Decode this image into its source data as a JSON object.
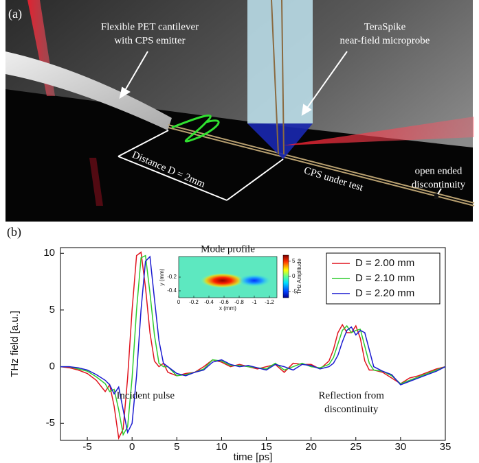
{
  "panel_a": {
    "label": "(a)",
    "cantilever_note": [
      "Flexible PET cantilever",
      "with CPS emitter"
    ],
    "probe_note": [
      "TeraSpike",
      "near-field microprobe"
    ],
    "distance_note": "Distance D = 2mm",
    "cps_note": "CPS under test",
    "discontinuity_note": [
      "open ended",
      "discontinuity"
    ]
  },
  "chart_data": {
    "type": "line",
    "panel_label": "(b)",
    "xlabel": "time [ps]",
    "ylabel": "THz field [a.u.]",
    "x": [
      -8,
      -7,
      -6,
      -5,
      -4,
      -3,
      -2.5,
      -2,
      -1.5,
      -1,
      -0.5,
      0,
      0.5,
      1,
      1.5,
      2,
      2.5,
      3,
      3.5,
      4,
      5,
      6,
      7,
      8,
      9,
      10,
      11,
      12,
      13,
      14,
      15,
      16,
      17,
      18,
      19,
      20,
      21,
      22,
      22.5,
      23,
      23.5,
      24,
      24.5,
      25,
      25.5,
      26,
      26.5,
      27,
      28,
      29,
      30,
      31,
      32,
      33,
      34,
      35
    ],
    "series": [
      {
        "name": "D = 2.00 mm",
        "color": "#e0141e",
        "values": [
          0,
          -0.1,
          -0.3,
          -0.6,
          -1.2,
          -2.2,
          -1.6,
          -3.5,
          -6.3,
          -5.5,
          -1,
          5,
          9.8,
          10.1,
          7,
          3,
          0.5,
          0,
          0.3,
          -0.5,
          -0.8,
          -0.6,
          -0.5,
          0,
          0.6,
          0.4,
          0,
          0.2,
          0,
          -0.2,
          0,
          0.2,
          -0.5,
          0.3,
          0.2,
          0.2,
          -0.2,
          0.5,
          1.5,
          3,
          3.7,
          3,
          3,
          3.6,
          2.5,
          0.5,
          -0.3,
          -0.3,
          -0.5,
          -1,
          -1.5,
          -1,
          -0.8,
          -0.5,
          -0.2,
          0
        ]
      },
      {
        "name": "D = 2.10 mm",
        "color": "#2ecc2e",
        "values": [
          0,
          0,
          -0.2,
          -0.4,
          -0.9,
          -1.5,
          -2.2,
          -2,
          -3.8,
          -6,
          -5.3,
          -1,
          5,
          9.6,
          9.8,
          6.5,
          2.8,
          0.3,
          0,
          0,
          -0.8,
          -0.7,
          -0.5,
          -0.2,
          0.6,
          0.5,
          0.1,
          0.1,
          0,
          -0.1,
          -0.2,
          0.3,
          -0.3,
          0,
          0.3,
          0,
          -0.1,
          0.2,
          0.8,
          2,
          3.2,
          3.6,
          3,
          3.2,
          3.3,
          1.8,
          0.3,
          -0.3,
          -0.4,
          -0.8,
          -1.5,
          -1.2,
          -0.9,
          -0.6,
          -0.3,
          0
        ]
      },
      {
        "name": "D = 2.20 mm",
        "color": "#1a1ad0",
        "values": [
          0,
          0,
          -0.1,
          -0.3,
          -0.7,
          -1.2,
          -1.6,
          -2.4,
          -1.8,
          -3.8,
          -5.8,
          -5,
          -0.8,
          5,
          9.3,
          9.7,
          6,
          2.3,
          0.3,
          0,
          -0.6,
          -0.8,
          -0.5,
          -0.3,
          0.4,
          0.6,
          0.2,
          0,
          0.1,
          -0.1,
          -0.3,
          0.2,
          0,
          -0.3,
          0.2,
          0.1,
          -0.2,
          0,
          0.3,
          1,
          2.2,
          3.2,
          3.5,
          2.8,
          3.2,
          3,
          1.5,
          0,
          -0.4,
          -0.7,
          -1.6,
          -1.3,
          -1,
          -0.7,
          -0.4,
          0
        ]
      }
    ],
    "xlim": [
      -8,
      35
    ],
    "xticks": [
      -5,
      0,
      5,
      10,
      15,
      20,
      25,
      30,
      35
    ],
    "ylim": [
      -6.5,
      10.5
    ],
    "yticks": [
      -5,
      0,
      5,
      10
    ],
    "legend": "upper right",
    "annotations": [
      {
        "text": [
          "Incident pulse"
        ],
        "x": 1.5,
        "y": -2.6
      },
      {
        "text": [
          "Reflection from",
          "discontinuity"
        ],
        "x": 24.5,
        "y": -2.6
      }
    ],
    "inset": {
      "title": "Mode profile",
      "xlabel": "x (mm)",
      "ylabel": "y (mm)",
      "colorbar_label": "THz Amplitude",
      "xlim": [
        0,
        -1.3
      ],
      "xticks": [
        0,
        -0.2,
        -0.4,
        -0.6,
        -0.8,
        -1,
        -1.2
      ],
      "ylim": [
        0.1,
        -0.5
      ],
      "yticks": [
        -0.2,
        -0.4
      ],
      "clim": [
        -7,
        7
      ],
      "cticks": [
        5,
        0,
        -5
      ]
    }
  }
}
